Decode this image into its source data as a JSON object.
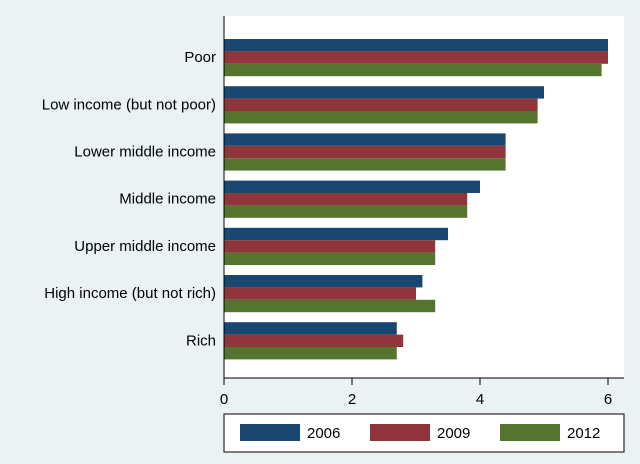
{
  "chart_data": {
    "type": "bar",
    "orientation": "horizontal",
    "title": "",
    "xlabel": "",
    "ylabel": "",
    "categories": [
      "Poor",
      "Low income (but not poor)",
      "Lower middle income",
      "Middle income",
      "Upper middle income",
      "High income (but not rich)",
      "Rich"
    ],
    "series": [
      {
        "name": "2006",
        "color": "#1a476f",
        "values": [
          6.0,
          5.0,
          4.4,
          4.0,
          3.5,
          3.1,
          2.7
        ]
      },
      {
        "name": "2009",
        "color": "#90353b",
        "values": [
          6.0,
          4.9,
          4.4,
          3.8,
          3.3,
          3.0,
          2.8
        ]
      },
      {
        "name": "2012",
        "color": "#55752f",
        "values": [
          5.9,
          4.9,
          4.4,
          3.8,
          3.3,
          3.3,
          2.7
        ]
      }
    ],
    "xlim": [
      0,
      6.25
    ],
    "xticks": [
      "0",
      "2",
      "4",
      "6"
    ],
    "grid": false,
    "legend_position": "bottom"
  }
}
